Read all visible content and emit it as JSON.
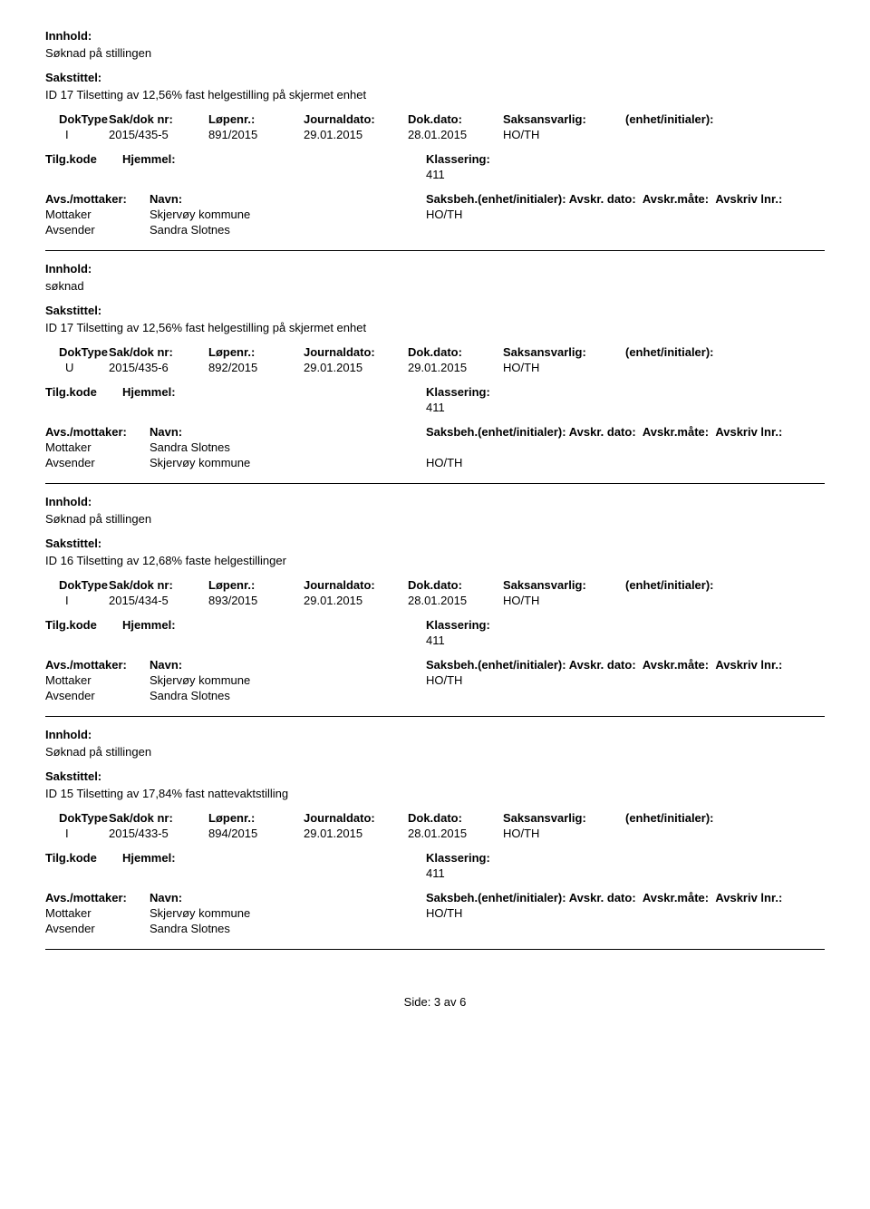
{
  "labels": {
    "innhold": "Innhold:",
    "sakstittel": "Sakstittel:",
    "doktype": "DokType",
    "sakdok": "Sak/dok nr:",
    "lopenr": "Løpenr.:",
    "journaldato": "Journaldato:",
    "dokdato": "Dok.dato:",
    "saksansvarlig": "Saksansvarlig:",
    "enhet": "(enhet/initialer):",
    "tilgkode": "Tilg.kode",
    "hjemmel": "Hjemmel:",
    "klassering": "Klassering:",
    "avsmottaker": "Avs./mottaker:",
    "navn": "Navn:",
    "saksbeh": "Saksbeh.(enhet/initialer):",
    "avskr_dato": "Avskr. dato:",
    "avskr_mate": "Avskr.måte:",
    "avskriv_lnr": "Avskriv lnr.:",
    "mottaker": "Mottaker",
    "avsender": "Avsender"
  },
  "records": [
    {
      "innhold": "Søknad på stillingen",
      "sakstittel": "ID 17  Tilsetting av 12,56% fast helgestilling på skjermet enhet",
      "doktype": "I",
      "sakdok": "2015/435-5",
      "lopenr": "891/2015",
      "journaldato": "29.01.2015",
      "dokdato": "28.01.2015",
      "saksansvarlig": "HO/TH",
      "klassering": "411",
      "mottaker_navn": "Skjervøy kommune",
      "mottaker_saksbeh": "HO/TH",
      "avsender_navn": "Sandra Slotnes"
    },
    {
      "innhold": "søknad",
      "sakstittel": "ID 17  Tilsetting av 12,56% fast helgestilling på skjermet enhet",
      "doktype": "U",
      "sakdok": "2015/435-6",
      "lopenr": "892/2015",
      "journaldato": "29.01.2015",
      "dokdato": "29.01.2015",
      "saksansvarlig": "HO/TH",
      "klassering": "411",
      "mottaker_navn": "Sandra Slotnes",
      "mottaker_saksbeh": "",
      "avsender_navn": "Skjervøy kommune",
      "avsender_saksbeh": "HO/TH"
    },
    {
      "innhold": "Søknad på stillingen",
      "sakstittel": "ID 16  Tilsetting av 12,68% faste helgestillinger",
      "doktype": "I",
      "sakdok": "2015/434-5",
      "lopenr": "893/2015",
      "journaldato": "29.01.2015",
      "dokdato": "28.01.2015",
      "saksansvarlig": "HO/TH",
      "klassering": "411",
      "mottaker_navn": "Skjervøy kommune",
      "mottaker_saksbeh": "HO/TH",
      "avsender_navn": "Sandra Slotnes"
    },
    {
      "innhold": "Søknad på stillingen",
      "sakstittel": "ID 15  Tilsetting av 17,84% fast nattevaktstilling",
      "doktype": "I",
      "sakdok": "2015/433-5",
      "lopenr": "894/2015",
      "journaldato": "29.01.2015",
      "dokdato": "28.01.2015",
      "saksansvarlig": "HO/TH",
      "klassering": "411",
      "mottaker_navn": "Skjervøy kommune",
      "mottaker_saksbeh": "HO/TH",
      "avsender_navn": "Sandra Slotnes"
    }
  ],
  "footer": "Side: 3 av 6"
}
